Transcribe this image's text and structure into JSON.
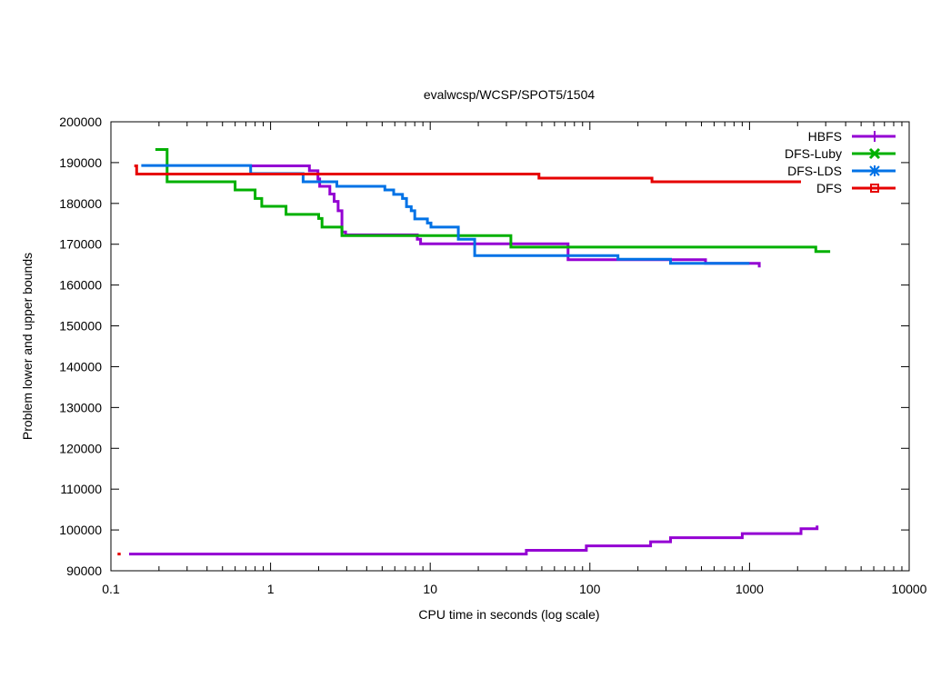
{
  "chart_data": {
    "type": "line",
    "title": "evalwcsp/WCSP/SPOT5/1504",
    "xlabel": "CPU time in seconds (log scale)",
    "ylabel": "Problem lower and upper bounds",
    "xscale": "log",
    "xlim": [
      0.1,
      10000
    ],
    "ylim": [
      90000,
      200000
    ],
    "xticks": [
      0.1,
      1,
      10,
      100,
      1000,
      10000
    ],
    "xtick_labels": [
      "0.1",
      "1",
      "10",
      "100",
      "1000",
      "10000"
    ],
    "yticks": [
      90000,
      100000,
      110000,
      120000,
      130000,
      140000,
      150000,
      160000,
      170000,
      180000,
      190000,
      200000
    ],
    "ytick_labels": [
      "90000",
      "100000",
      "110000",
      "120000",
      "130000",
      "140000",
      "150000",
      "160000",
      "170000",
      "180000",
      "190000",
      "200000"
    ],
    "legend_position": "top-right",
    "series": [
      {
        "name": "HBFS",
        "color": "#9400d3",
        "marker": "plus",
        "segments": [
          [
            [
              0.75,
              189200
            ],
            [
              1.75,
              189200
            ],
            [
              1.75,
              188000
            ],
            [
              1.98,
              188000
            ],
            [
              1.98,
              186000
            ],
            [
              2.03,
              186000
            ],
            [
              2.03,
              184200
            ],
            [
              2.35,
              184200
            ],
            [
              2.35,
              182300
            ],
            [
              2.5,
              182300
            ],
            [
              2.5,
              180500
            ],
            [
              2.65,
              180500
            ],
            [
              2.65,
              178200
            ],
            [
              2.8,
              178200
            ],
            [
              2.8,
              173000
            ],
            [
              2.95,
              173000
            ],
            [
              2.95,
              172300
            ],
            [
              8.3,
              172300
            ],
            [
              8.3,
              171200
            ],
            [
              8.7,
              171200
            ],
            [
              8.7,
              170100
            ],
            [
              73,
              170100
            ],
            [
              73,
              166200
            ],
            [
              530,
              166200
            ],
            [
              530,
              165300
            ],
            [
              900,
              165300
            ],
            [
              900,
              165300
            ],
            [
              1150,
              165300
            ],
            [
              1150,
              164300
            ]
          ],
          [
            [
              0.13,
              94100
            ],
            [
              40,
              94100
            ],
            [
              40,
              95000
            ],
            [
              95,
              95000
            ],
            [
              95,
              96100
            ],
            [
              240,
              96100
            ],
            [
              240,
              97100
            ],
            [
              320,
              97100
            ],
            [
              320,
              98100
            ],
            [
              900,
              98100
            ],
            [
              900,
              99100
            ],
            [
              2100,
              99100
            ],
            [
              2100,
              100300
            ],
            [
              2650,
              100300
            ],
            [
              2650,
              101100
            ]
          ]
        ]
      },
      {
        "name": "DFS-Luby",
        "color": "#00b000",
        "marker": "x",
        "segments": [
          [
            [
              0.19,
              193200
            ],
            [
              0.225,
              193200
            ],
            [
              0.225,
              185300
            ],
            [
              0.6,
              185300
            ],
            [
              0.6,
              183300
            ],
            [
              0.8,
              183300
            ],
            [
              0.8,
              181200
            ],
            [
              0.88,
              181200
            ],
            [
              0.88,
              179300
            ],
            [
              1.25,
              179300
            ],
            [
              1.25,
              177300
            ],
            [
              2.0,
              177300
            ],
            [
              2.0,
              176300
            ],
            [
              2.1,
              176300
            ],
            [
              2.1,
              174200
            ],
            [
              2.8,
              174200
            ],
            [
              2.8,
              172100
            ],
            [
              32,
              172100
            ],
            [
              32,
              169300
            ],
            [
              2600,
              169300
            ],
            [
              2600,
              168200
            ],
            [
              3200,
              168200
            ]
          ]
        ]
      },
      {
        "name": "DFS-LDS",
        "color": "#0072e6",
        "marker": "star",
        "segments": [
          [
            [
              0.155,
              189300
            ],
            [
              0.75,
              189300
            ],
            [
              0.75,
              187300
            ],
            [
              1.6,
              187300
            ],
            [
              1.6,
              185300
            ],
            [
              2.6,
              185300
            ],
            [
              2.6,
              184200
            ],
            [
              5.2,
              184200
            ],
            [
              5.2,
              183300
            ],
            [
              5.9,
              183300
            ],
            [
              5.9,
              182200
            ],
            [
              6.7,
              182200
            ],
            [
              6.7,
              181200
            ],
            [
              7.1,
              181200
            ],
            [
              7.1,
              179200
            ],
            [
              7.6,
              179200
            ],
            [
              7.6,
              178200
            ],
            [
              8.0,
              178200
            ],
            [
              8.0,
              176200
            ],
            [
              9.6,
              176200
            ],
            [
              9.6,
              175200
            ],
            [
              10.1,
              175200
            ],
            [
              10.1,
              174200
            ],
            [
              15,
              174200
            ],
            [
              15,
              171200
            ],
            [
              19,
              171200
            ],
            [
              19,
              167200
            ],
            [
              150,
              167200
            ],
            [
              150,
              166300
            ],
            [
              320,
              166300
            ],
            [
              320,
              165300
            ],
            [
              1000,
              165300
            ]
          ]
        ]
      },
      {
        "name": "DFS",
        "color": "#e60000",
        "marker": "square",
        "segments": [
          [
            [
              0.14,
              189200
            ],
            [
              0.145,
              189200
            ],
            [
              0.145,
              187200
            ],
            [
              48,
              187200
            ],
            [
              48,
              186200
            ],
            [
              245,
              186200
            ],
            [
              245,
              185300
            ],
            [
              2100,
              185300
            ]
          ],
          [
            [
              0.11,
              94100
            ],
            [
              0.115,
              94100
            ]
          ]
        ]
      }
    ]
  }
}
